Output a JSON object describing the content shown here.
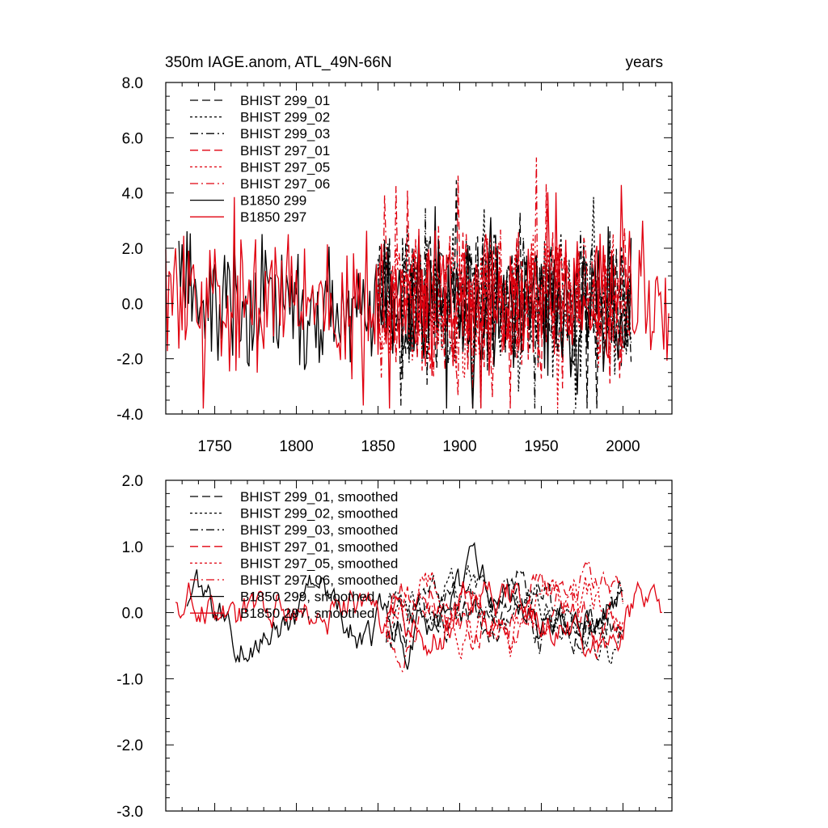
{
  "colors": {
    "black": "#000000",
    "red": "#e0000f"
  },
  "chart_data": [
    {
      "type": "line",
      "title_left": "350m IAGE.anom, ATL_49N-66N",
      "title_right": "years",
      "xlim": [
        1720,
        2030
      ],
      "ylim": [
        -4,
        8
      ],
      "x_ticks": [
        "1750",
        "1800",
        "1850",
        "1900",
        "1950",
        "2000"
      ],
      "y_ticks": [
        "-4.0",
        "-2.0",
        "0.0",
        "2.0",
        "4.0",
        "6.0",
        "8.0"
      ],
      "series": [
        {
          "name": "BHIST 299_01",
          "style": "dash",
          "color": "black",
          "x_start": 1850,
          "x_end": 2005
        },
        {
          "name": "BHIST 299_02",
          "style": "dot",
          "color": "black",
          "x_start": 1850,
          "x_end": 2005
        },
        {
          "name": "BHIST 299_03",
          "style": "dashdot",
          "color": "black",
          "x_start": 1850,
          "x_end": 2005
        },
        {
          "name": "BHIST 297_01",
          "style": "dash",
          "color": "red",
          "x_start": 1850,
          "x_end": 2005
        },
        {
          "name": "BHIST 297_05",
          "style": "dot",
          "color": "red",
          "x_start": 1850,
          "x_end": 2005
        },
        {
          "name": "BHIST 297_06",
          "style": "dashdot",
          "color": "red",
          "x_start": 1850,
          "x_end": 2005
        },
        {
          "name": "B1850 299",
          "style": "solid",
          "color": "black",
          "x_start": 1728,
          "x_end": 2005
        },
        {
          "name": "B1850 297",
          "style": "solid",
          "color": "red",
          "x_start": 1720,
          "x_end": 2028
        }
      ]
    },
    {
      "type": "line",
      "xlim": [
        1720,
        2030
      ],
      "ylim": [
        -3,
        2
      ],
      "y_ticks": [
        "-3.0",
        "-2.0",
        "-1.0",
        "0.0",
        "1.0",
        "2.0"
      ],
      "series": [
        {
          "name": "BHIST 299_01, smoothed",
          "style": "dash",
          "color": "black",
          "x_start": 1855,
          "x_end": 2000
        },
        {
          "name": "BHIST 299_02, smoothed",
          "style": "dot",
          "color": "black",
          "x_start": 1855,
          "x_end": 2000
        },
        {
          "name": "BHIST 299_03, smoothed",
          "style": "dashdot",
          "color": "black",
          "x_start": 1855,
          "x_end": 2000
        },
        {
          "name": "BHIST 297_01, smoothed",
          "style": "dash",
          "color": "red",
          "x_start": 1855,
          "x_end": 2000
        },
        {
          "name": "BHIST 297_05, smoothed",
          "style": "dot",
          "color": "red",
          "x_start": 1855,
          "x_end": 2000
        },
        {
          "name": "BHIST 297_06, smoothed",
          "style": "dashdot",
          "color": "red",
          "x_start": 1855,
          "x_end": 2000
        },
        {
          "name": "B1850 299, smoothed",
          "style": "solid",
          "color": "black",
          "x_start": 1733,
          "x_end": 2000
        },
        {
          "name": "B1850 297, smoothed",
          "style": "solid",
          "color": "red",
          "x_start": 1726,
          "x_end": 2024
        }
      ]
    }
  ]
}
